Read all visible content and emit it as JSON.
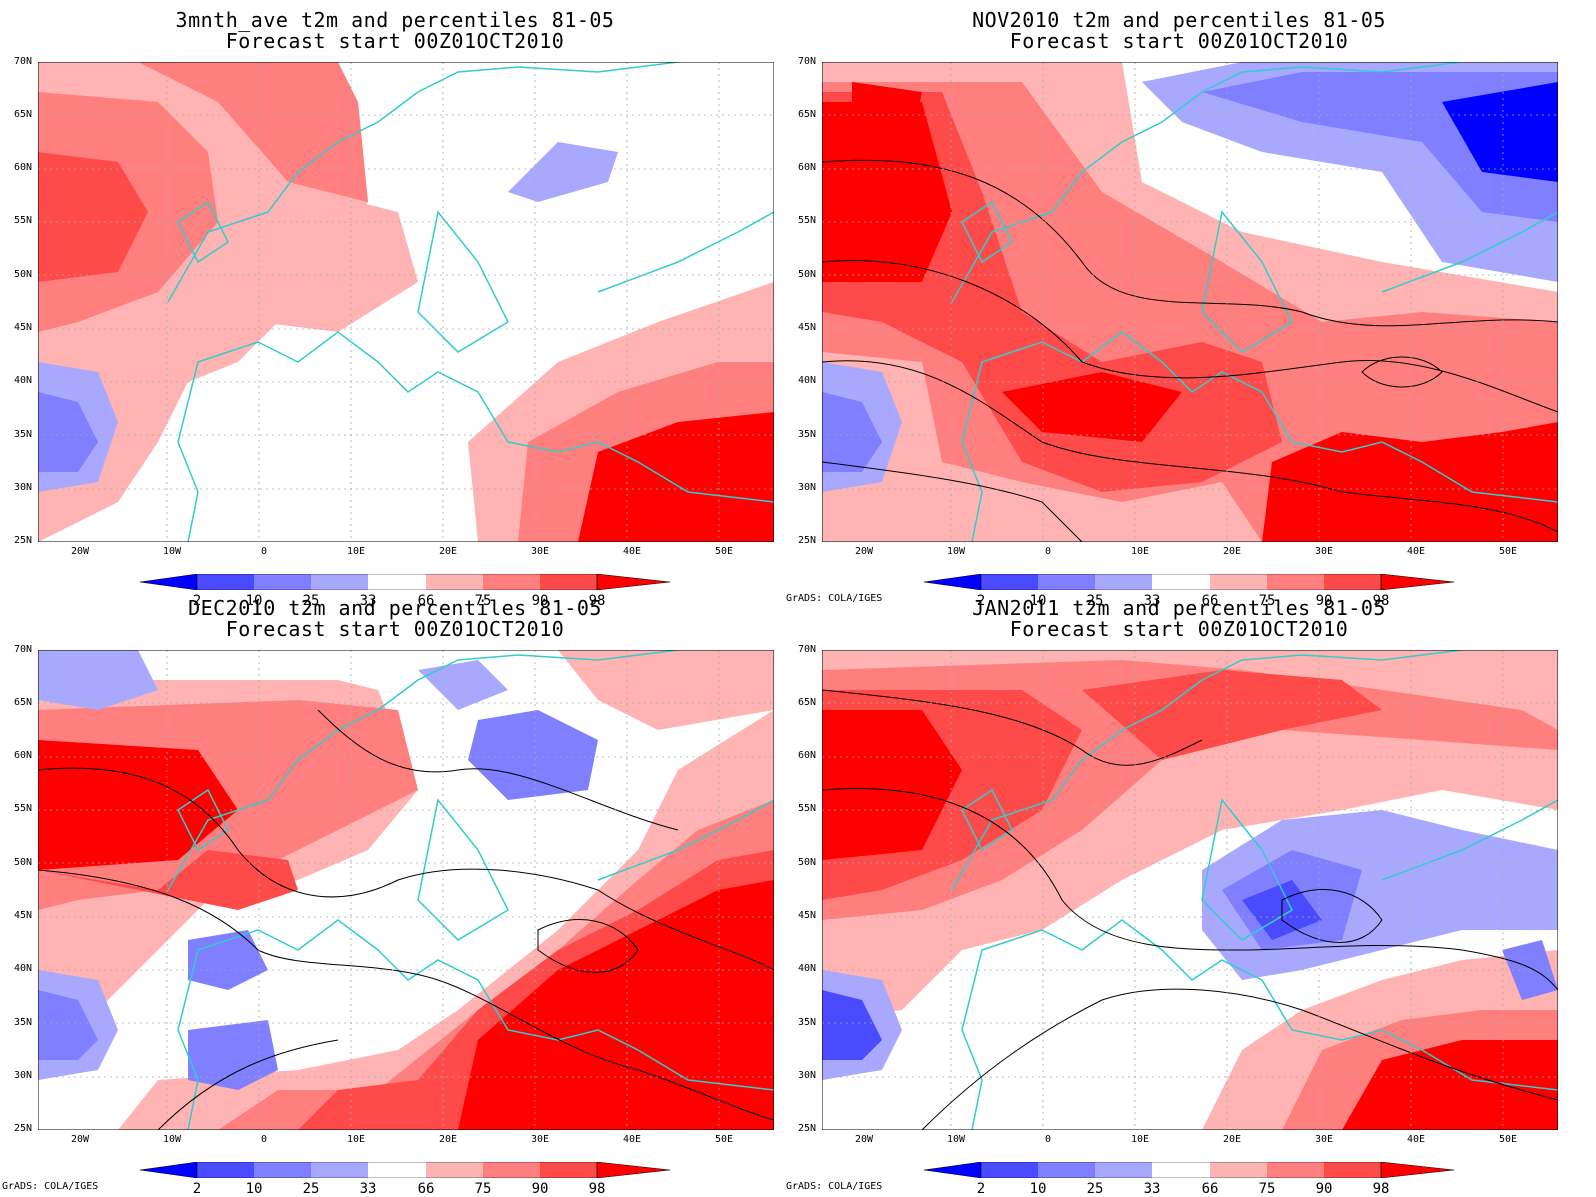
{
  "credit": "GrADS: COLA/IGES",
  "lat_labels": [
    "70N",
    "65N",
    "60N",
    "55N",
    "50N",
    "45N",
    "40N",
    "35N",
    "30N",
    "25N"
  ],
  "lon_labels": [
    "20W",
    "10W",
    "0",
    "10E",
    "20E",
    "30E",
    "40E",
    "50E"
  ],
  "colorbar": {
    "labels": [
      "2",
      "10",
      "25",
      "33",
      "66",
      "75",
      "90",
      "98"
    ],
    "colors": [
      "#0000ff",
      "#4a4aff",
      "#7f7fff",
      "#a8a8ff",
      "#ffffff",
      "#ffb3b3",
      "#ff7f7f",
      "#ff4a4a",
      "#ff0000"
    ]
  },
  "panels": [
    {
      "title1": "3mnth_ave t2m and percentiles 81-05",
      "title2": "Forecast start 00Z01OCT2010",
      "show_credit": false
    },
    {
      "title1": "NOV2010 t2m and percentiles 81-05",
      "title2": "Forecast start 00Z01OCT2010",
      "show_credit": true
    },
    {
      "title1": "DEC2010 t2m and percentiles 81-05",
      "title2": "Forecast start 00Z01OCT2010",
      "show_credit": true
    },
    {
      "title1": "JAN2011 t2m and percentiles 81-05",
      "title2": "Forecast start 00Z01OCT2010",
      "show_credit": true
    }
  ]
}
